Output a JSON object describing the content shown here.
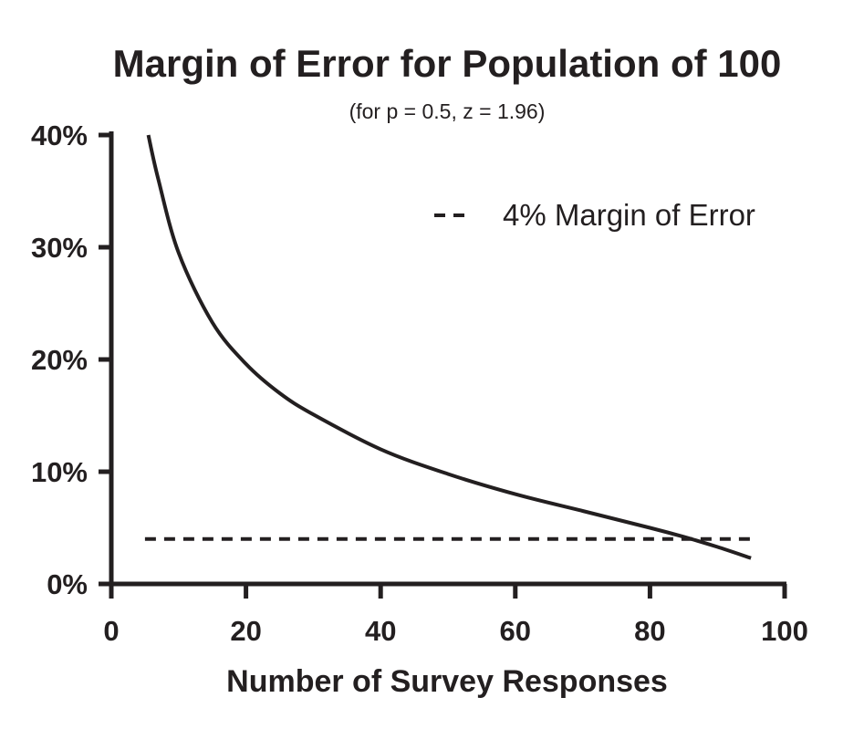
{
  "chart_data": {
    "type": "line",
    "title": "Margin of Error for Population of 100",
    "subtitle": "(for p = 0.5, z = 1.96)",
    "xlabel": "Number of Survey Responses",
    "ylabel": "",
    "xlim": [
      0,
      100
    ],
    "ylim": [
      0,
      40
    ],
    "x_ticks": [
      0,
      20,
      40,
      60,
      80,
      100
    ],
    "x_tick_labels": [
      "0",
      "20",
      "40",
      "60",
      "80",
      "100"
    ],
    "y_ticks": [
      0,
      10,
      20,
      30,
      40
    ],
    "y_tick_labels": [
      "0%",
      "10%",
      "20%",
      "30%",
      "40%"
    ],
    "grid": false,
    "legend_position": "top-right",
    "series": [
      {
        "style": "solid",
        "x": [
          5.5,
          7,
          10,
          15,
          20,
          25,
          30,
          40,
          50,
          60,
          70,
          80,
          85,
          90,
          95
        ],
        "y": [
          40,
          36,
          29.5,
          23.3,
          19.6,
          17.0,
          15.1,
          12.0,
          9.8,
          8.0,
          6.5,
          5.0,
          4.2,
          3.3,
          2.3
        ]
      },
      {
        "name": "4% Margin of Error",
        "style": "dashed",
        "x": [
          5,
          95
        ],
        "y": [
          4,
          4
        ]
      }
    ]
  }
}
